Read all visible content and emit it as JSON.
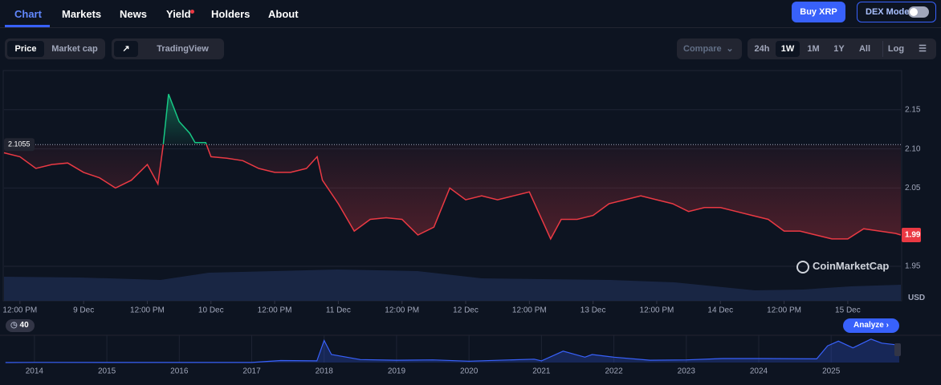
{
  "nav": [
    "Chart",
    "Markets",
    "News",
    "Yield",
    "Holders",
    "About"
  ],
  "actions": {
    "buy": "Buy XRP",
    "dex_mode": "DEX Mode"
  },
  "toolbar": {
    "price": "Price",
    "market_cap": "Market cap",
    "tradingview": "TradingView",
    "compare": "Compare",
    "ranges": [
      "24h",
      "1W",
      "1M",
      "1Y",
      "All"
    ],
    "log": "Log"
  },
  "currency": "USD",
  "watermark": "CoinMarketCap",
  "analyze": "Analyze",
  "events_count": 40,
  "chart_data": [
    {
      "type": "line",
      "x": [
        -3,
        0,
        3,
        6,
        9,
        12,
        15,
        18,
        21,
        24,
        26,
        27,
        28,
        30,
        32,
        33,
        35,
        36,
        39,
        42,
        45,
        48,
        51,
        54,
        56,
        57,
        60,
        63,
        66,
        69,
        72,
        75,
        78,
        81,
        84,
        87,
        90,
        93,
        96,
        99,
        100,
        102,
        105,
        108,
        111,
        114,
        117,
        120,
        123,
        126,
        129,
        132,
        135,
        138,
        141,
        144,
        147,
        150,
        153,
        156,
        159,
        162,
        165,
        166
      ],
      "series": [
        {
          "name": "Price",
          "values": [
            2.095,
            2.09,
            2.075,
            2.08,
            2.082,
            2.07,
            2.063,
            2.05,
            2.06,
            2.08,
            2.055,
            2.105,
            2.17,
            2.135,
            2.12,
            2.108,
            2.108,
            2.09,
            2.088,
            2.085,
            2.075,
            2.07,
            2.07,
            2.075,
            2.09,
            2.06,
            2.03,
            1.995,
            2.01,
            2.012,
            2.01,
            1.99,
            2.0,
            2.05,
            2.035,
            2.04,
            2.035,
            2.04,
            2.045,
            2.0,
            1.985,
            2.01,
            2.01,
            2.015,
            2.03,
            2.035,
            2.04,
            2.035,
            2.03,
            2.02,
            2.025,
            2.025,
            2.02,
            2.015,
            2.01,
            1.995,
            1.995,
            1.99,
            1.985,
            1.985,
            1.998,
            1.995,
            1.992,
            1.99
          ]
        }
      ],
      "up_color": "#16c784",
      "down_color": "#ea3943",
      "reference_line": 2.1055,
      "last_price": 1.99,
      "xlim": [
        -3,
        166
      ],
      "xticks": [
        {
          "value": 0,
          "label": "12:00 PM"
        },
        {
          "value": 12,
          "label": "9 Dec"
        },
        {
          "value": 24,
          "label": "12:00 PM"
        },
        {
          "value": 36,
          "label": "10 Dec"
        },
        {
          "value": 48,
          "label": "12:00 PM"
        },
        {
          "value": 60,
          "label": "11 Dec"
        },
        {
          "value": 72,
          "label": "12:00 PM"
        },
        {
          "value": 84,
          "label": "12 Dec"
        },
        {
          "value": 96,
          "label": "12:00 PM"
        },
        {
          "value": 108,
          "label": "13 Dec"
        },
        {
          "value": 120,
          "label": "12:00 PM"
        },
        {
          "value": 132,
          "label": "14 Dec"
        },
        {
          "value": 144,
          "label": "12:00 PM"
        },
        {
          "value": 156,
          "label": "15 Dec"
        }
      ],
      "ylim": [
        1.906,
        2.2
      ],
      "yticks": [
        1.95,
        2.05,
        {
          "value": 2.1,
          "label": "2.10"
        },
        2.15
      ],
      "grid": true
    },
    {
      "type": "line",
      "x": [
        2013.6,
        2014,
        2015,
        2016,
        2017,
        2017.4,
        2017.9,
        2018,
        2018.1,
        2018.5,
        2019,
        2019.5,
        2020,
        2020.9,
        2021,
        2021.3,
        2021.6,
        2021.7,
        2022,
        2022.5,
        2023,
        2023.5,
        2024,
        2024.8,
        2024.95,
        2025.1,
        2025.3,
        2025.55,
        2025.7,
        2025.94
      ],
      "series": [
        {
          "name": "Price",
          "color": "#3861fb",
          "values": [
            0.005,
            0.02,
            0.01,
            0.006,
            0.006,
            0.3,
            0.25,
            3.3,
            1.2,
            0.45,
            0.35,
            0.4,
            0.2,
            0.5,
            0.25,
            1.7,
            0.8,
            1.2,
            0.8,
            0.35,
            0.4,
            0.6,
            0.6,
            0.55,
            2.5,
            3.2,
            2.2,
            3.5,
            2.9,
            2.6
          ]
        }
      ],
      "xlim": [
        2013.58,
        2025.94
      ],
      "xticks": [
        2014,
        2015,
        2016,
        2017,
        2018,
        2019,
        2020,
        2021,
        2022,
        2023,
        2024,
        2025
      ],
      "ylim": [
        0,
        3.6
      ]
    }
  ]
}
